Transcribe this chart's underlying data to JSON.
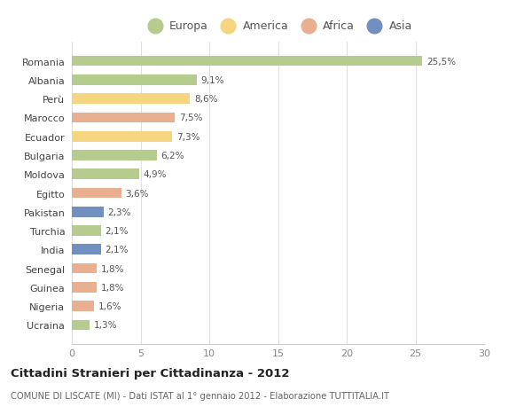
{
  "countries": [
    "Romania",
    "Albania",
    "Perù",
    "Marocco",
    "Ecuador",
    "Bulgaria",
    "Moldova",
    "Egitto",
    "Pakistan",
    "Turchia",
    "India",
    "Senegal",
    "Guinea",
    "Nigeria",
    "Ucraina"
  ],
  "values": [
    25.5,
    9.1,
    8.6,
    7.5,
    7.3,
    6.2,
    4.9,
    3.6,
    2.3,
    2.1,
    2.1,
    1.8,
    1.8,
    1.6,
    1.3
  ],
  "labels": [
    "25,5%",
    "9,1%",
    "8,6%",
    "7,5%",
    "7,3%",
    "6,2%",
    "4,9%",
    "3,6%",
    "2,3%",
    "2,1%",
    "2,1%",
    "1,8%",
    "1,8%",
    "1,6%",
    "1,3%"
  ],
  "colors": [
    "#b5cc8e",
    "#b5cc8e",
    "#f5d580",
    "#e8b090",
    "#f5d580",
    "#b5cc8e",
    "#b5cc8e",
    "#e8b090",
    "#7090c0",
    "#b5cc8e",
    "#7090c0",
    "#e8b090",
    "#e8b090",
    "#e8b090",
    "#b5cc8e"
  ],
  "categories": [
    "Europa",
    "America",
    "Africa",
    "Asia"
  ],
  "legend_colors": [
    "#b5cc8e",
    "#f5d580",
    "#e8b090",
    "#7090c0"
  ],
  "xlim": [
    0,
    30
  ],
  "xticks": [
    0,
    5,
    10,
    15,
    20,
    25,
    30
  ],
  "title": "Cittadini Stranieri per Cittadinanza - 2012",
  "subtitle": "COMUNE DI LISCATE (MI) - Dati ISTAT al 1° gennaio 2012 - Elaborazione TUTTITALIA.IT",
  "bg_color": "#ffffff",
  "bar_height": 0.55
}
